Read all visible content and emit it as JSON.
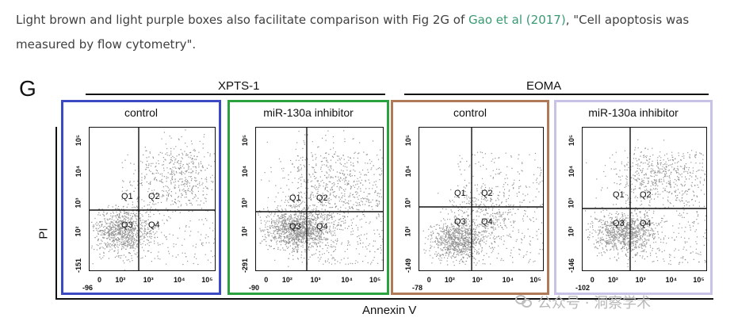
{
  "caption": {
    "before": "Light brown and light purple boxes also facilitate comparison with Fig 2G of ",
    "link": "Gao et al (2017)",
    "after": ", \"Cell apoptosis was measured by flow cytometry\"."
  },
  "figure": {
    "panel_letter": "G",
    "groups": [
      "XPTS-1",
      "EOMA"
    ],
    "y_axis_label": "PI",
    "x_axis_label": "Annexin V",
    "colors": {
      "box1": "#3b49c2",
      "box2": "#2aa33f",
      "box3": "#b07a58",
      "box4": "#c7c2e6"
    },
    "panels": [
      {
        "title": "control",
        "ymin": "-151",
        "xmin": "-96",
        "quadrants": [
          "Q1",
          "Q2",
          "Q3",
          "Q4"
        ]
      },
      {
        "title": "miR-130a inhibitor",
        "ymin": "-291",
        "xmin": "-90",
        "quadrants": [
          "Q1",
          "Q2",
          "Q3",
          "Q4"
        ]
      },
      {
        "title": "control",
        "ymin": "-149",
        "xmin": "-78",
        "quadrants": [
          "Q1",
          "Q2",
          "Q3",
          "Q4"
        ]
      },
      {
        "title": "miR-130a inhibitor",
        "ymin": "-146",
        "xmin": "-102",
        "quadrants": [
          "Q1",
          "Q2",
          "Q3",
          "Q4"
        ]
      }
    ],
    "y_ticks": [
      "10²",
      "10³",
      "10⁴",
      "10⁵"
    ],
    "x_ticks": [
      "0",
      "10²",
      "10³",
      "10⁴",
      "10⁵"
    ]
  },
  "watermark": "公众号 · 洞察学术"
}
